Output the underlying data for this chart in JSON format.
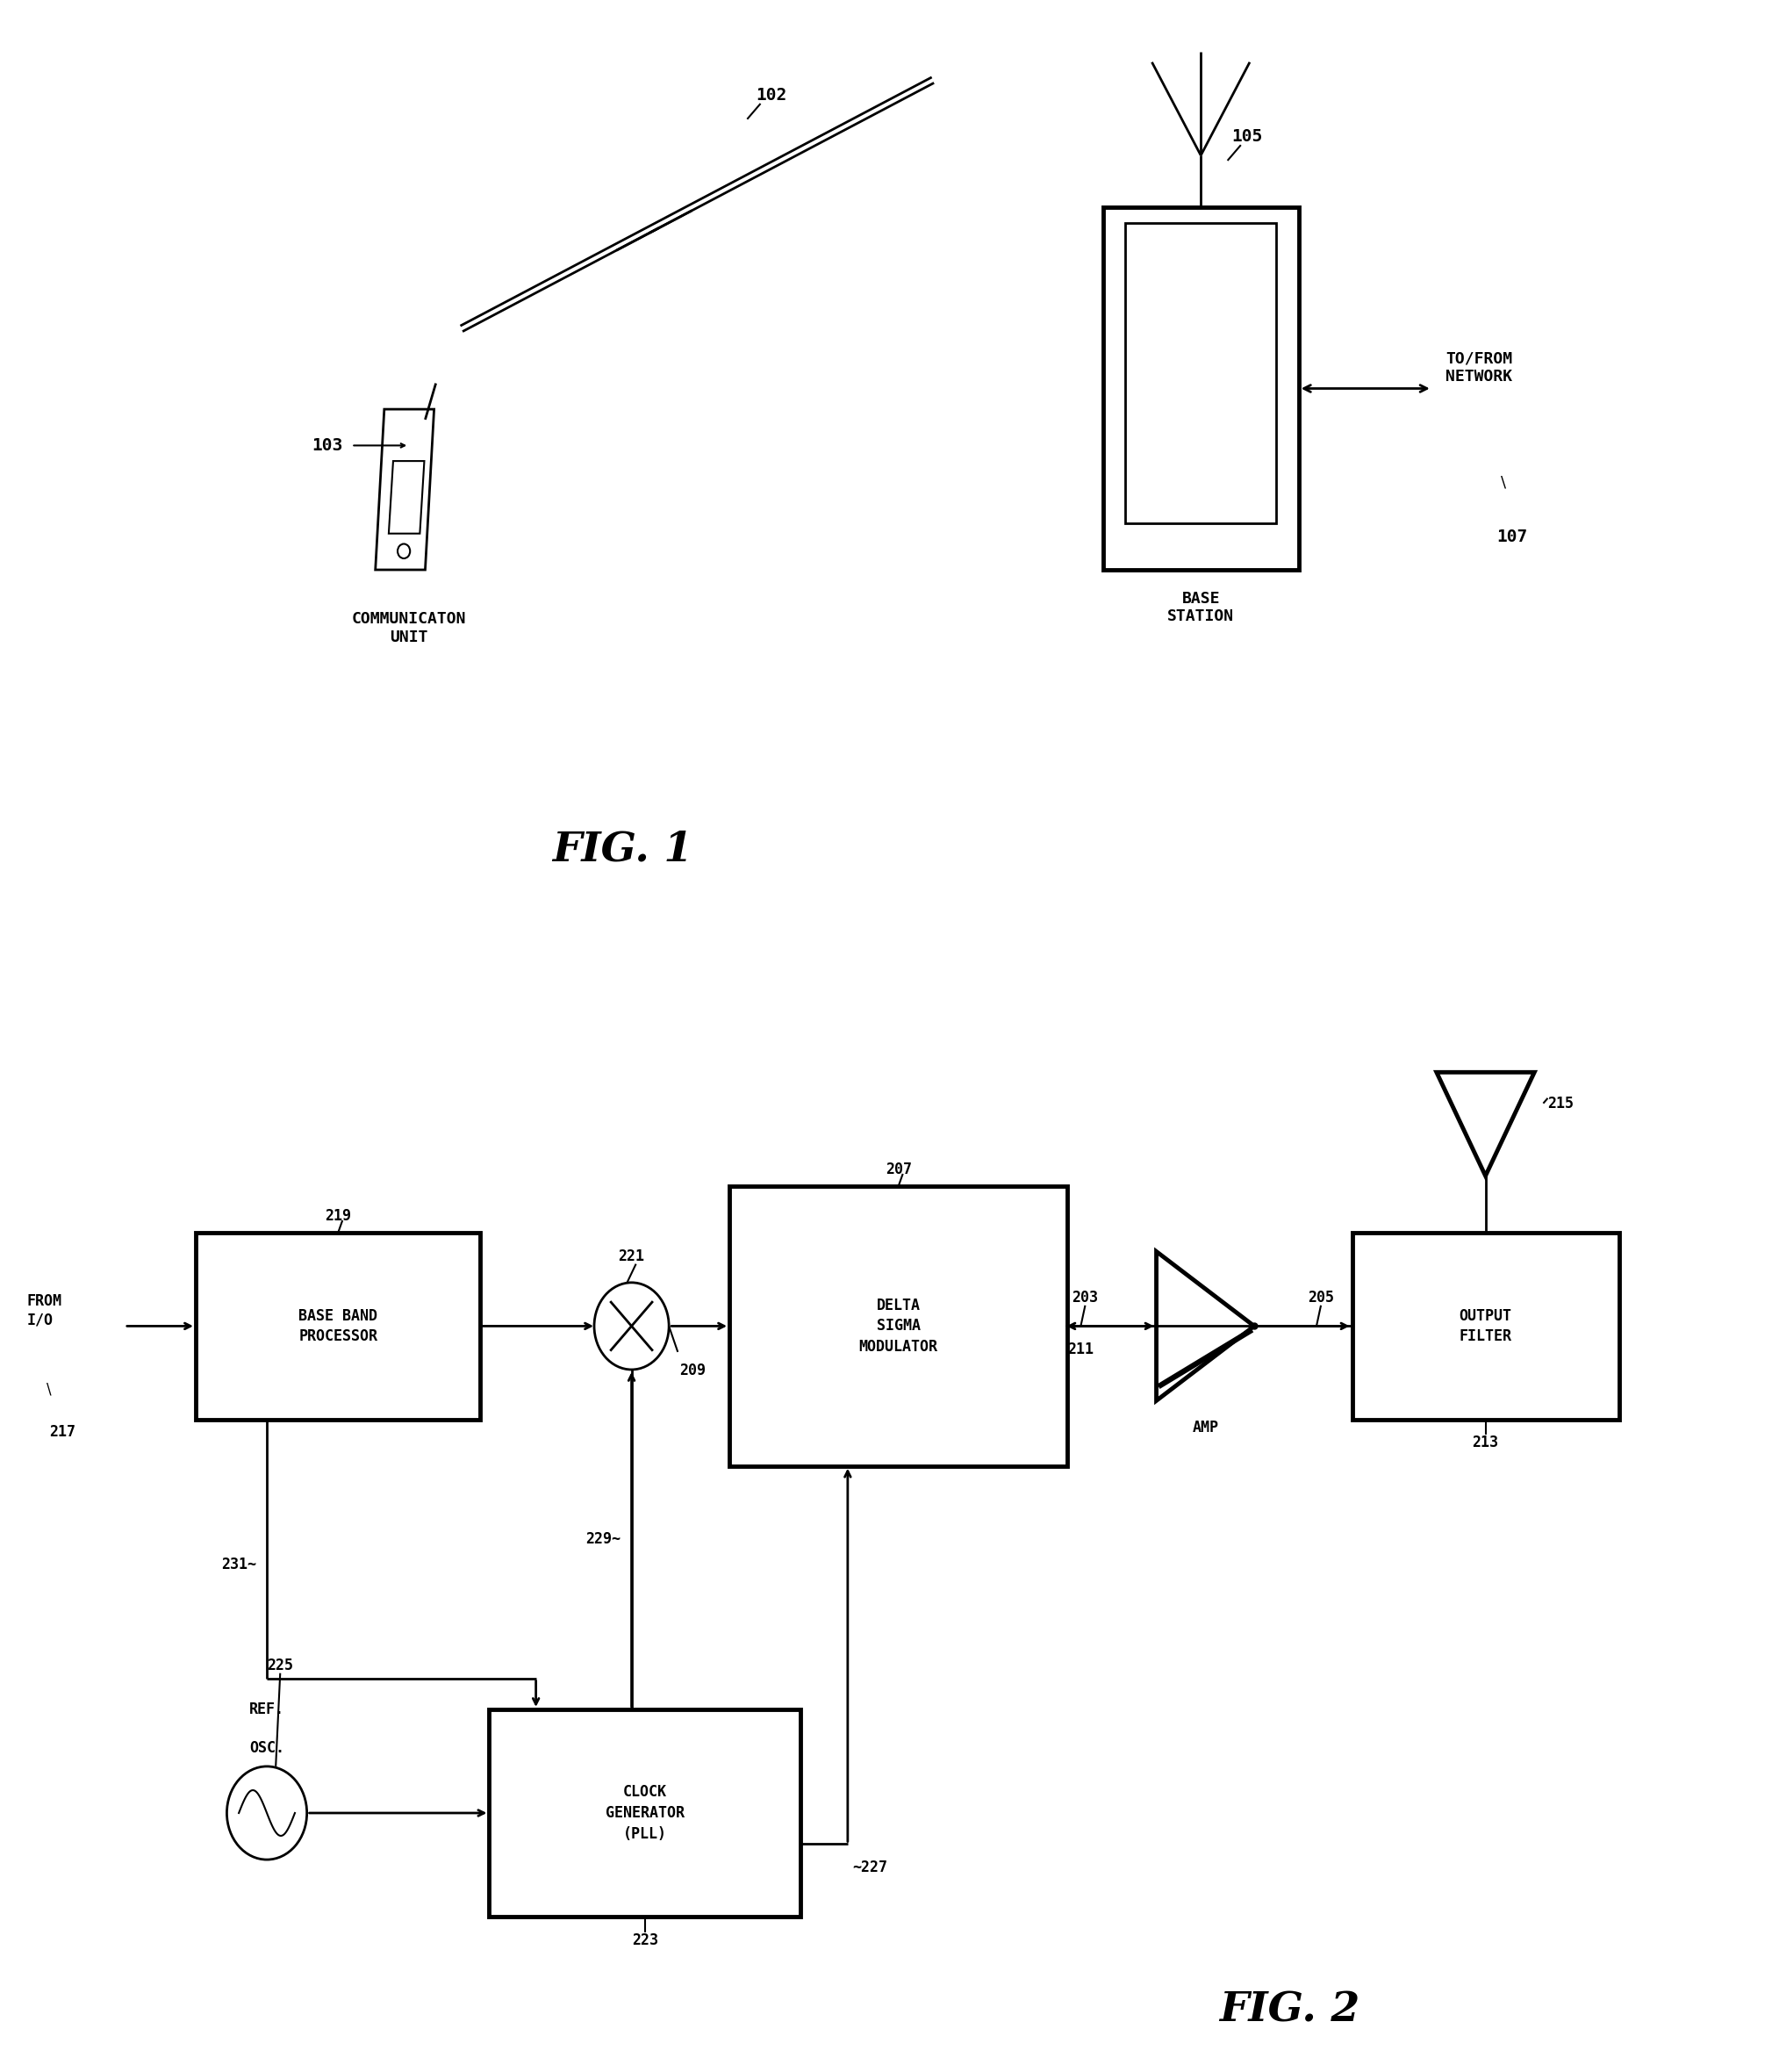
{
  "bg_color": "#ffffff",
  "line_color": "#000000",
  "fig1_title": "FIG. 1",
  "fig2_title": "FIG. 2",
  "fig1": {
    "comm_unit_label": "COMMUNICATON\nUNIT",
    "base_station_label": "BASE\nSTATION",
    "to_from_label": "TO/FROM\nNETWORK",
    "ref_102": "102",
    "ref_103": "103",
    "ref_105": "105",
    "ref_107": "107"
  },
  "fig2": {
    "from_io": "FROM\nI/O",
    "ref_217": "217",
    "bbp_label": "BASE BAND\nPROCESSOR",
    "ref_219": "219",
    "mult_symbol": "X",
    "ref_221": "221",
    "ref_209": "209",
    "dsm_label": "DELTA\nSIGMA\nMODULATOR",
    "ref_207": "207",
    "amp_label": "AMP",
    "ref_203": "203",
    "ref_211": "211",
    "of_label": "OUTPUT\nFILTER",
    "ref_205": "205",
    "ref_213": "213",
    "ref_215": "215",
    "clk_label": "CLOCK\nGENERATOR\n(PLL)",
    "ref_225": "225",
    "ref_223": "223",
    "osc_label": "REF.\nOSC.",
    "ref_229": "229",
    "ref_227": "~227",
    "ref_231": "231"
  }
}
